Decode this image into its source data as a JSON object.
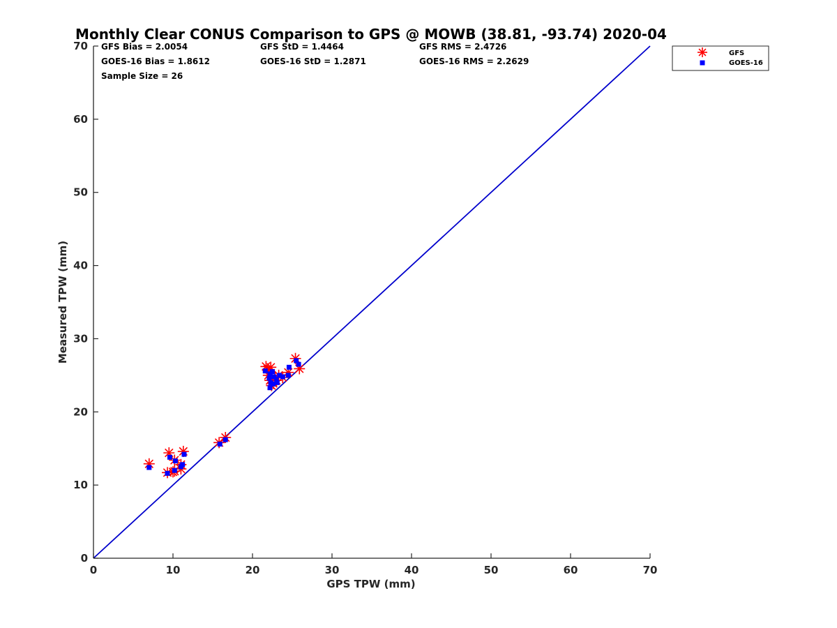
{
  "chart_data": {
    "type": "scatter",
    "title": "Monthly Clear CONUS Comparison to GPS @ MOWB (38.81, -93.74) 2020-04",
    "xlabel": "GPS TPW (mm)",
    "ylabel": "Measured TPW (mm)",
    "xlim": [
      0,
      70
    ],
    "ylim": [
      0,
      70
    ],
    "xticks": [
      0,
      10,
      20,
      30,
      40,
      50,
      60,
      70
    ],
    "yticks": [
      0,
      10,
      20,
      30,
      40,
      50,
      60,
      70
    ],
    "grid": false,
    "legend_position": "top-right-outside",
    "stats": {
      "gfs_bias": "GFS Bias = 2.0054",
      "goes_bias": "GOES-16 Bias = 1.8612",
      "sample_size": "Sample Size = 26",
      "gfs_std": "GFS StD = 1.4464",
      "goes_std": "GOES-16 StD = 1.2871",
      "gfs_rms": "GFS RMS = 2.4726",
      "goes_rms": "GOES-16 RMS = 2.2629"
    },
    "reference_line": {
      "x": [
        0,
        70
      ],
      "y": [
        0,
        70
      ],
      "color": "#0000cc"
    },
    "series": [
      {
        "name": "GFS",
        "marker": "asterisk",
        "color": "#ff0000",
        "points": [
          [
            7.0,
            12.9
          ],
          [
            9.5,
            14.4
          ],
          [
            9.3,
            11.7
          ],
          [
            10.2,
            11.9
          ],
          [
            10.2,
            13.4
          ],
          [
            11.0,
            12.2
          ],
          [
            11.0,
            12.8
          ],
          [
            11.3,
            14.6
          ],
          [
            15.8,
            15.8
          ],
          [
            16.6,
            16.5
          ],
          [
            21.7,
            26.2
          ],
          [
            22.3,
            26.1
          ],
          [
            22.0,
            25.0
          ],
          [
            22.2,
            24.3
          ],
          [
            22.4,
            23.6
          ],
          [
            22.8,
            24.7
          ],
          [
            23.0,
            24.3
          ],
          [
            23.3,
            25.0
          ],
          [
            24.5,
            25.4
          ],
          [
            25.4,
            27.3
          ],
          [
            25.9,
            25.9
          ],
          [
            22.3,
            25.3
          ],
          [
            23.8,
            24.7
          ],
          [
            22.6,
            23.9
          ],
          [
            10.0,
            11.8
          ],
          [
            21.9,
            25.8
          ]
        ]
      },
      {
        "name": "GOES-16",
        "marker": "square",
        "color": "#0000ff",
        "points": [
          [
            7.0,
            12.4
          ],
          [
            9.6,
            13.8
          ],
          [
            9.3,
            11.6
          ],
          [
            10.2,
            12.0
          ],
          [
            10.3,
            13.3
          ],
          [
            11.0,
            12.5
          ],
          [
            11.2,
            12.8
          ],
          [
            11.4,
            14.2
          ],
          [
            15.9,
            15.6
          ],
          [
            16.6,
            16.2
          ],
          [
            21.6,
            25.6
          ],
          [
            22.2,
            25.2
          ],
          [
            22.1,
            24.6
          ],
          [
            22.3,
            24.0
          ],
          [
            22.2,
            23.3
          ],
          [
            22.7,
            24.8
          ],
          [
            23.1,
            24.0
          ],
          [
            23.4,
            25.0
          ],
          [
            24.6,
            26.1
          ],
          [
            25.5,
            27.0
          ],
          [
            25.8,
            26.5
          ],
          [
            22.5,
            25.5
          ],
          [
            23.8,
            24.8
          ],
          [
            22.6,
            23.8
          ],
          [
            24.5,
            25.0
          ],
          [
            23.0,
            24.5
          ]
        ]
      }
    ]
  }
}
